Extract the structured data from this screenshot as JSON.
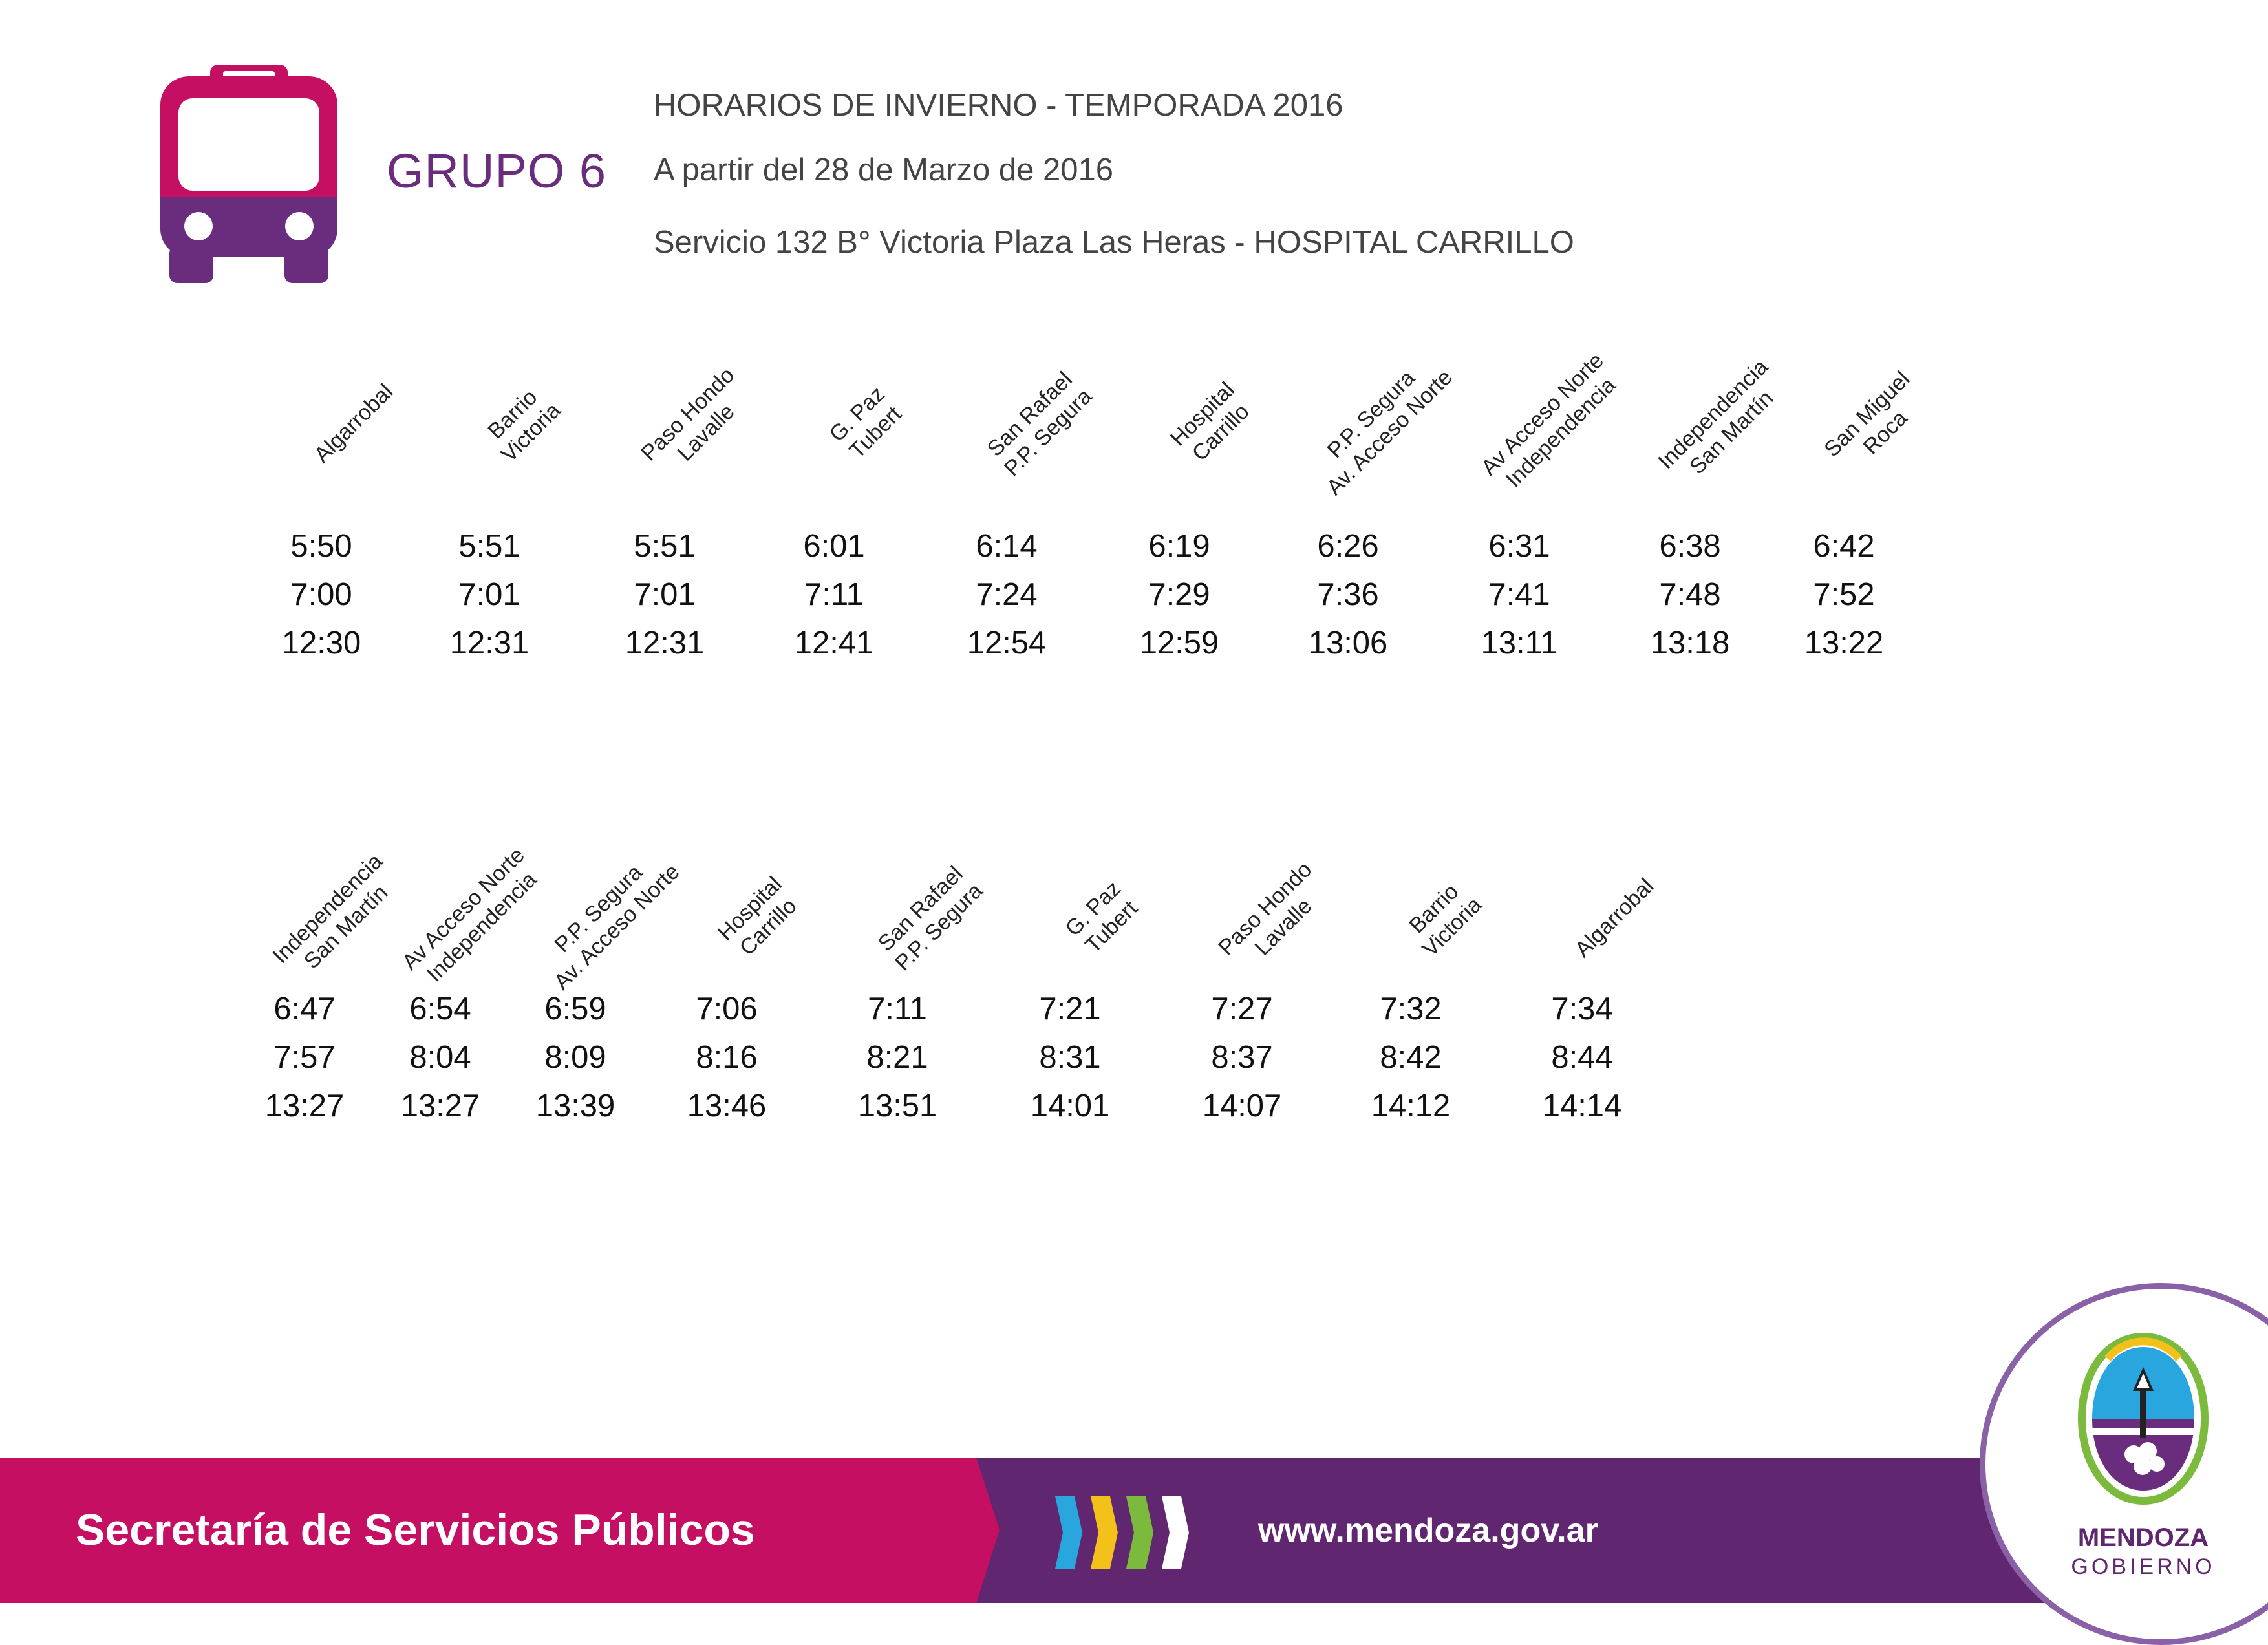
{
  "header": {
    "group": "GRUPO 6",
    "line1": "HORARIOS DE INVIERNO - TEMPORADA 2016",
    "line2": "A partir del 28 de Marzo de 2016",
    "line3": "Servicio 132  B° Victoria Plaza Las Heras - HOSPITAL CARRILLO"
  },
  "ida": [
    {
      "stop": [
        "Algarrobal"
      ],
      "times": [
        "5:50",
        "7:00",
        "12:30"
      ]
    },
    {
      "stop": [
        "Barrio",
        "Victoria"
      ],
      "times": [
        "5:51",
        "7:01",
        "12:31"
      ]
    },
    {
      "stop": [
        "Paso Hondo",
        "Lavalle"
      ],
      "times": [
        "5:51",
        "7:01",
        "12:31"
      ]
    },
    {
      "stop": [
        "G. Paz",
        "Tubert"
      ],
      "times": [
        "6:01",
        "7:11",
        "12:41"
      ]
    },
    {
      "stop": [
        "San Rafael",
        "P.P. Segura"
      ],
      "times": [
        "6:14",
        "7:24",
        "12:54"
      ]
    },
    {
      "stop": [
        "Hospital",
        "Carrillo"
      ],
      "times": [
        "6:19",
        "7:29",
        "12:59"
      ]
    },
    {
      "stop": [
        "P.P. Segura",
        "Av. Acceso Norte"
      ],
      "times": [
        "6:26",
        "7:36",
        "13:06"
      ]
    },
    {
      "stop": [
        "Av Acceso Norte",
        "Independencia"
      ],
      "times": [
        "6:31",
        "7:41",
        "13:11"
      ]
    },
    {
      "stop": [
        "Independencia",
        "San Martín"
      ],
      "times": [
        "6:38",
        "7:48",
        "13:18"
      ]
    },
    {
      "stop": [
        "San Miguel",
        "Roca"
      ],
      "times": [
        "6:42",
        "7:52",
        "13:22"
      ]
    }
  ],
  "vuelta": [
    {
      "stop": [
        "Independencia",
        "San Martín"
      ],
      "times": [
        "6:47",
        "7:57",
        "13:27"
      ]
    },
    {
      "stop": [
        "Av Acceso Norte",
        "Independencia"
      ],
      "times": [
        "6:54",
        "8:04",
        "13:27"
      ]
    },
    {
      "stop": [
        "P.P. Segura",
        "Av. Acceso Norte"
      ],
      "times": [
        "6:59",
        "8:09",
        "13:39"
      ]
    },
    {
      "stop": [
        "Hospital",
        "Carrillo"
      ],
      "times": [
        "7:06",
        "8:16",
        "13:46"
      ]
    },
    {
      "stop": [
        "San Rafael",
        "P.P. Segura"
      ],
      "times": [
        "7:11",
        "8:21",
        "13:51"
      ]
    },
    {
      "stop": [
        "G. Paz",
        "Tubert"
      ],
      "times": [
        "7:21",
        "8:31",
        "14:01"
      ]
    },
    {
      "stop": [
        "Paso Hondo",
        "Lavalle"
      ],
      "times": [
        "7:27",
        "8:37",
        "14:07"
      ]
    },
    {
      "stop": [
        "Barrio",
        "Victoria"
      ],
      "times": [
        "7:32",
        "8:42",
        "14:12"
      ]
    },
    {
      "stop": [
        "Algarrobal"
      ],
      "times": [
        "7:34",
        "8:44",
        "14:14"
      ]
    }
  ],
  "footer": {
    "title": "Secretaría de Servicios Públicos",
    "url": "www.mendoza.gov.ar",
    "chevron_colors": [
      "#2aa6df",
      "#f2c11a",
      "#7cba3d",
      "#ffffff"
    ]
  },
  "logo": {
    "name": "MENDOZA",
    "sub": "GOBIERNO",
    "icon": "mendoza-shield-icon"
  },
  "colors": {
    "magenta": "#c50f62",
    "purple": "#60266f",
    "group_text": "#6a2c7d"
  }
}
